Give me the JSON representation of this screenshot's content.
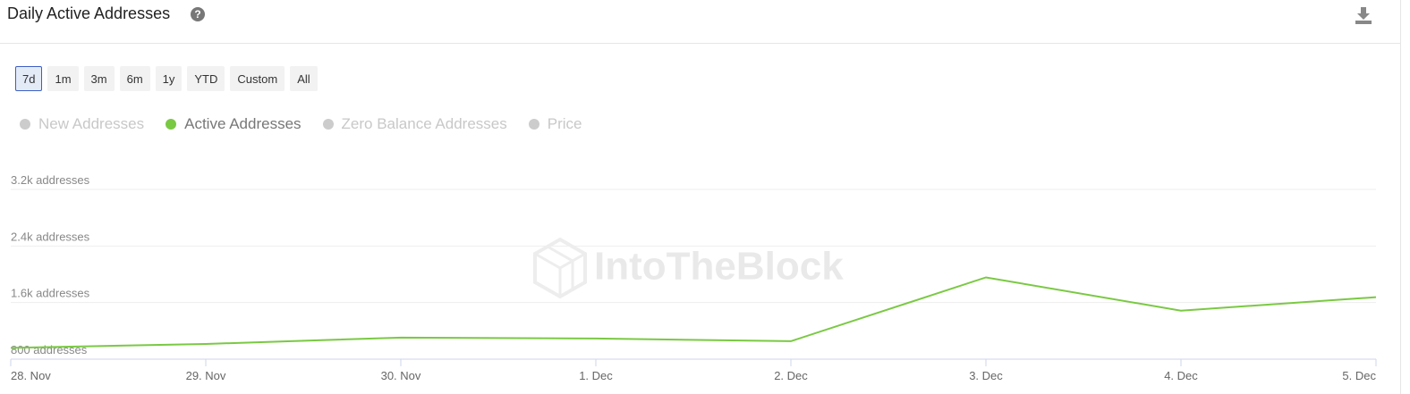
{
  "header": {
    "title": "Daily Active Addresses",
    "help": "?"
  },
  "range_buttons": [
    "7d",
    "1m",
    "3m",
    "6m",
    "1y",
    "YTD",
    "Custom",
    "All"
  ],
  "selected_range": "7d",
  "chart_data": {
    "type": "line",
    "watermark": "IntoTheBlock",
    "legend": [
      {
        "name": "New Addresses",
        "color": "#cccccc",
        "active": false
      },
      {
        "name": "Active Addresses",
        "color": "#7ac943",
        "active": true
      },
      {
        "name": "Zero Balance Addresses",
        "color": "#cccccc",
        "active": false
      },
      {
        "name": "Price",
        "color": "#cccccc",
        "active": false
      }
    ],
    "categories": [
      "28. Nov",
      "29. Nov",
      "30. Nov",
      "1. Dec",
      "2. Dec",
      "3. Dec",
      "4. Dec",
      "5. Dec"
    ],
    "series": [
      {
        "name": "Active Addresses",
        "color": "#7ac943",
        "values": [
          960,
          1015,
          1105,
          1092,
          1054,
          1956,
          1486,
          1676
        ]
      }
    ],
    "ylim": [
      800,
      3200
    ],
    "yticks": [
      {
        "value": 800,
        "label": "800 addresses"
      },
      {
        "value": 1600,
        "label": "1.6k addresses"
      },
      {
        "value": 2400,
        "label": "2.4k addresses"
      },
      {
        "value": 3200,
        "label": "3.2k addresses"
      }
    ],
    "grid": true
  }
}
